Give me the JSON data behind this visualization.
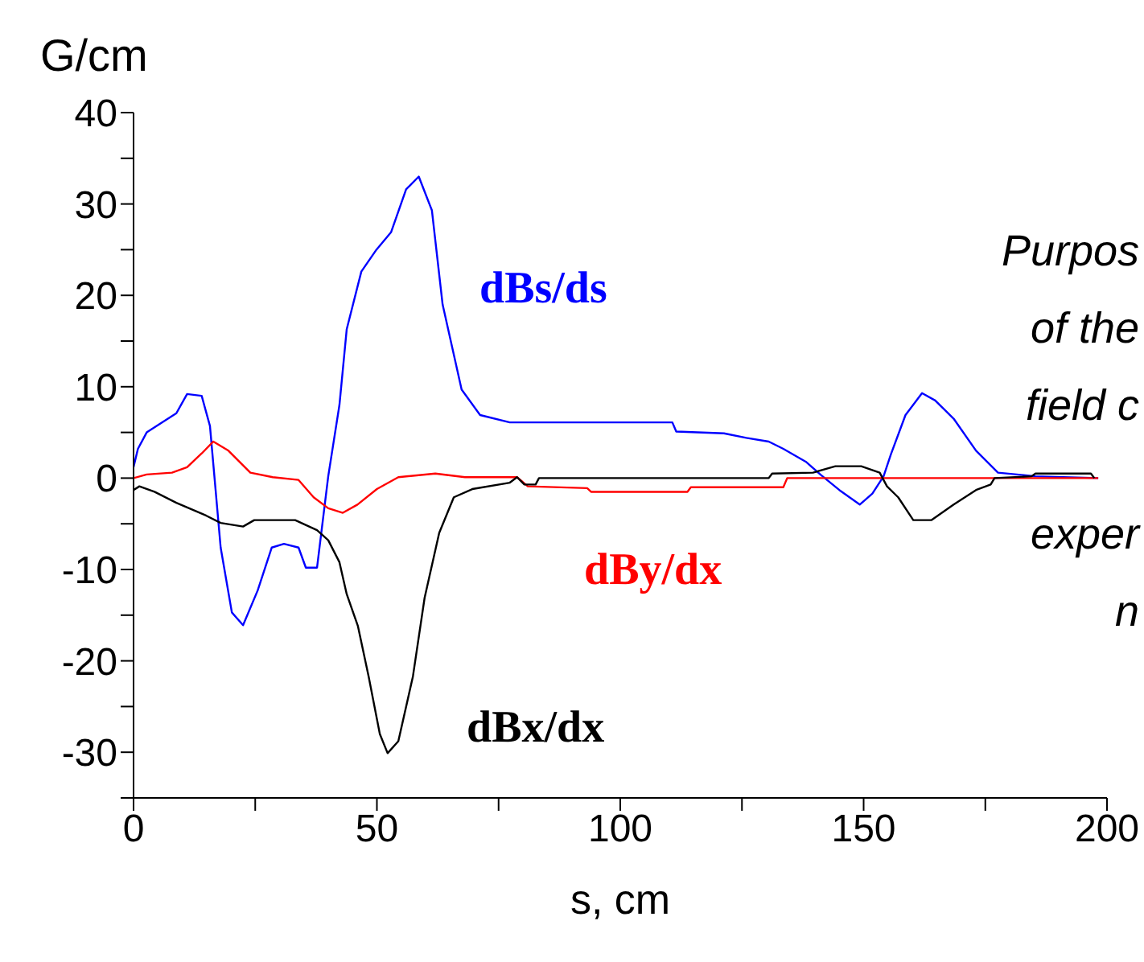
{
  "chart_data": {
    "type": "line",
    "ylabel": "G/cm",
    "xlabel": "s, cm",
    "xlim": [
      0,
      200
    ],
    "xticks": [
      0,
      {
        "value": 25,
        "label": null
      },
      50,
      {
        "value": 75,
        "label": null
      },
      100,
      {
        "value": 125,
        "label": null
      },
      150,
      {
        "value": 175,
        "label": null
      },
      200
    ],
    "ylim": [
      -35,
      40
    ],
    "yticks": [
      {
        "value": -35,
        "label": null
      },
      -30,
      {
        "value": -25,
        "label": null
      },
      -20,
      {
        "value": -15,
        "label": null
      },
      -10,
      {
        "value": -5,
        "label": null
      },
      0,
      {
        "value": 5,
        "label": null
      },
      10,
      {
        "value": 15,
        "label": null
      },
      20,
      {
        "value": 25,
        "label": null
      },
      30,
      {
        "value": 35,
        "label": null
      },
      40
    ],
    "grid": false,
    "legend": false,
    "marker": "none",
    "line_style": "solid",
    "series": [
      {
        "name": "dBs/ds",
        "color": "#0000ff",
        "x": [
          0,
          0.9,
          2.7,
          8.8,
          11,
          14,
          15.7,
          17.9,
          20.2,
          22.5,
          25.5,
          28.4,
          30.9,
          33.9,
          35.4,
          37.7,
          40,
          42.3,
          43.8,
          46.8,
          49.9,
          52.9,
          56,
          58.6,
          61.3,
          63.5,
          67.4,
          71.2,
          77.3,
          81.8,
          110.7,
          111.5,
          121.3,
          125.9,
          130.5,
          133.5,
          138.1,
          141.1,
          145,
          149.2,
          151.8,
          154.1,
          155.6,
          158.6,
          162,
          164.7,
          168.5,
          173.1,
          177.6,
          185.3,
          198.2
        ],
        "values": [
          1.2,
          3.2,
          5,
          7.1,
          9.2,
          9,
          5.7,
          -7.6,
          -14.7,
          -16.1,
          -12.3,
          -7.6,
          -7.2,
          -7.6,
          -9.8,
          -9.8,
          0.2,
          8,
          16.3,
          22.6,
          25,
          26.9,
          31.6,
          33,
          29.3,
          19,
          9.7,
          6.9,
          6.1,
          6.1,
          6.1,
          5.1,
          4.9,
          4.4,
          4,
          3.2,
          1.8,
          0.4,
          -1.3,
          -2.9,
          -1.7,
          0.2,
          2.6,
          6.9,
          9.3,
          8.5,
          6.5,
          3,
          0.6,
          0.2,
          0
        ]
      },
      {
        "name": "dBy/dx",
        "color": "#ff0000",
        "x": [
          0,
          2.7,
          7.9,
          11,
          14,
          16.4,
          19.5,
          24,
          28.6,
          33.9,
          37,
          40,
          43,
          46,
          50,
          54.4,
          62,
          68.1,
          78.8,
          81,
          93.2,
          94,
          113.8,
          114.5,
          133.5,
          134.3,
          198.2
        ],
        "values": [
          0,
          0.4,
          0.6,
          1.2,
          2.7,
          4,
          3,
          0.6,
          0.1,
          -0.2,
          -2.1,
          -3.3,
          -3.8,
          -2.9,
          -1.2,
          0.1,
          0.5,
          0.1,
          0.1,
          -0.9,
          -1.1,
          -1.5,
          -1.5,
          -1,
          -1,
          0,
          0
        ]
      },
      {
        "name": "dBx/dx",
        "color": "#000000",
        "x": [
          0,
          1.2,
          4.3,
          8.8,
          14.9,
          17.9,
          22.5,
          24.8,
          33.2,
          37.7,
          40,
          42.3,
          43.8,
          46.1,
          48.3,
          50.6,
          52.2,
          54.4,
          57.4,
          59.8,
          62.8,
          65.8,
          69.6,
          77.3,
          78.8,
          80.3,
          82.6,
          83.3,
          130.5,
          131.2,
          139.6,
          144.2,
          149.5,
          153.3,
          154.8,
          157.1,
          160.2,
          163.9,
          168.5,
          173.1,
          176.1,
          176.9,
          184.5,
          185.3,
          196.7,
          197.4
        ],
        "values": [
          -1.3,
          -0.9,
          -1.5,
          -2.7,
          -4.1,
          -4.9,
          -5.3,
          -4.6,
          -4.6,
          -5.7,
          -6.8,
          -9.2,
          -12.7,
          -16.2,
          -21.7,
          -28,
          -30.1,
          -28.8,
          -21.7,
          -13.1,
          -6,
          -2.1,
          -1.2,
          -0.5,
          0.1,
          -0.7,
          -0.7,
          0,
          0,
          0.5,
          0.6,
          1.3,
          1.3,
          0.6,
          -0.9,
          -2.1,
          -4.6,
          -4.6,
          -2.9,
          -1.3,
          -0.7,
          0,
          0.2,
          0.5,
          0.5,
          0
        ]
      }
    ],
    "annotations": [
      "Purpos",
      "of the",
      "field c",
      "exper",
      "n"
    ]
  }
}
